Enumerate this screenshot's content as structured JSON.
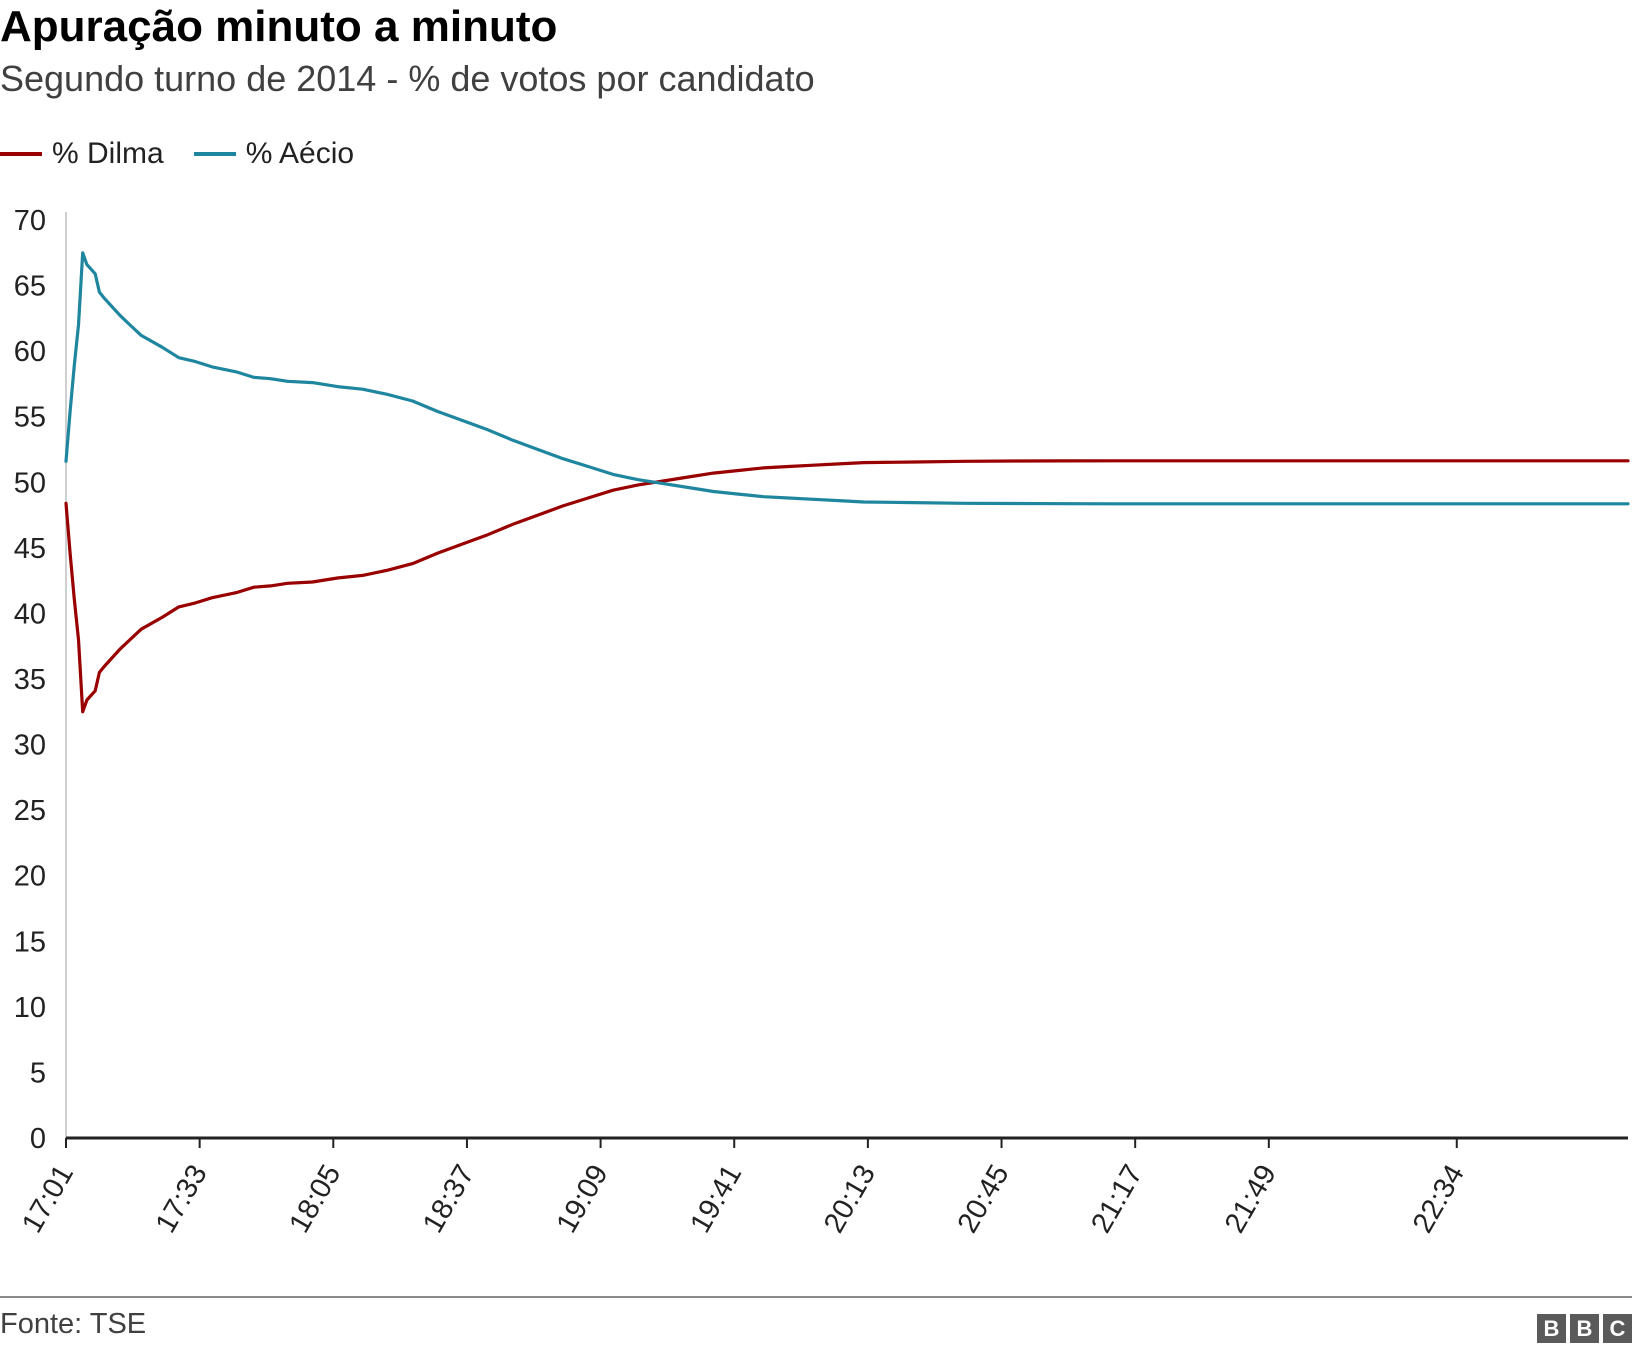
{
  "title": "Apuração minuto a minuto",
  "subtitle": "Segundo turno de 2014 - % de votos por candidato",
  "source": "Fonte: TSE",
  "logo": [
    "B",
    "B",
    "C"
  ],
  "legend": [
    {
      "label": "% Dilma",
      "color": "#990000"
    },
    {
      "label": "% Aécio",
      "color": "#1f86a0"
    }
  ],
  "chart_data": {
    "type": "line",
    "ylim": [
      0,
      70
    ],
    "yticks": [
      0,
      5,
      10,
      15,
      20,
      25,
      30,
      35,
      40,
      45,
      50,
      55,
      60,
      65,
      70
    ],
    "xlim": [
      "17:01",
      "23:15"
    ],
    "xticks": [
      "17:01",
      "17:33",
      "18:05",
      "18:37",
      "19:09",
      "19:41",
      "20:13",
      "20:45",
      "21:17",
      "21:49",
      "22:34"
    ],
    "grid": false,
    "legend_position": "top-left",
    "series": [
      {
        "name": "% Dilma",
        "color": "#990000",
        "x": [
          "17:01",
          "17:02",
          "17:03",
          "17:04",
          "17:05",
          "17:06",
          "17:08",
          "17:09",
          "17:10",
          "17:12",
          "17:14",
          "17:16",
          "17:19",
          "17:24",
          "17:28",
          "17:32",
          "17:36",
          "17:42",
          "17:46",
          "17:50",
          "17:54",
          "18:00",
          "18:06",
          "18:12",
          "18:18",
          "18:24",
          "18:30",
          "18:36",
          "18:42",
          "18:48",
          "18:54",
          "19:00",
          "19:06",
          "19:12",
          "19:18",
          "19:24",
          "19:30",
          "19:36",
          "19:42",
          "19:48",
          "19:54",
          "20:00",
          "20:06",
          "20:12",
          "20:24",
          "20:36",
          "20:48",
          "21:00",
          "21:12",
          "21:30",
          "21:48",
          "22:06",
          "22:24",
          "22:42",
          "23:00",
          "23:15"
        ],
        "y": [
          48.4,
          44.5,
          41.0,
          38.0,
          32.5,
          33.4,
          34.1,
          35.5,
          35.9,
          36.6,
          37.3,
          37.9,
          38.8,
          39.7,
          40.5,
          40.8,
          41.2,
          41.6,
          42.0,
          42.1,
          42.3,
          42.4,
          42.7,
          42.9,
          43.3,
          43.8,
          44.6,
          45.3,
          46.0,
          46.8,
          47.5,
          48.2,
          48.8,
          49.4,
          49.8,
          50.1,
          50.4,
          50.7,
          50.9,
          51.1,
          51.2,
          51.3,
          51.4,
          51.5,
          51.55,
          51.6,
          51.62,
          51.63,
          51.64,
          51.64,
          51.64,
          51.64,
          51.64,
          51.64,
          51.64,
          51.64
        ]
      },
      {
        "name": "% Aécio",
        "color": "#1f86a0",
        "x": [
          "17:01",
          "17:02",
          "17:03",
          "17:04",
          "17:05",
          "17:06",
          "17:08",
          "17:09",
          "17:10",
          "17:12",
          "17:14",
          "17:16",
          "17:19",
          "17:24",
          "17:28",
          "17:32",
          "17:36",
          "17:42",
          "17:46",
          "17:50",
          "17:54",
          "18:00",
          "18:06",
          "18:12",
          "18:18",
          "18:24",
          "18:30",
          "18:36",
          "18:42",
          "18:48",
          "18:54",
          "19:00",
          "19:06",
          "19:12",
          "19:18",
          "19:24",
          "19:30",
          "19:36",
          "19:42",
          "19:48",
          "19:54",
          "20:00",
          "20:06",
          "20:12",
          "20:24",
          "20:36",
          "20:48",
          "21:00",
          "21:12",
          "21:30",
          "21:48",
          "22:06",
          "22:24",
          "22:42",
          "23:00",
          "23:15"
        ],
        "y": [
          51.6,
          55.5,
          59.0,
          62.0,
          67.5,
          66.6,
          65.9,
          64.5,
          64.1,
          63.4,
          62.7,
          62.1,
          61.2,
          60.3,
          59.5,
          59.2,
          58.8,
          58.4,
          58.0,
          57.9,
          57.7,
          57.6,
          57.3,
          57.1,
          56.7,
          56.2,
          55.4,
          54.7,
          54.0,
          53.2,
          52.5,
          51.8,
          51.2,
          50.6,
          50.2,
          49.9,
          49.6,
          49.3,
          49.1,
          48.9,
          48.8,
          48.7,
          48.6,
          48.5,
          48.45,
          48.4,
          48.38,
          48.37,
          48.36,
          48.36,
          48.36,
          48.36,
          48.36,
          48.36,
          48.36,
          48.36
        ]
      }
    ]
  }
}
